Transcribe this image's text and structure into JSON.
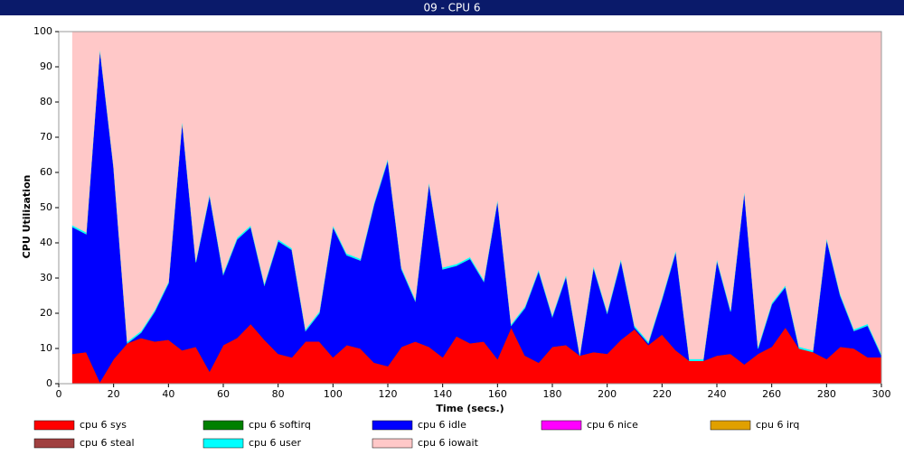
{
  "window_title": "09 - CPU 6",
  "chart_data": {
    "type": "stacked_area",
    "xlabel": "Time (secs.)",
    "ylabel": "CPU Utilization",
    "x": [
      5,
      10,
      15,
      20,
      25,
      30,
      35,
      40,
      45,
      50,
      55,
      60,
      65,
      70,
      75,
      80,
      85,
      90,
      95,
      100,
      105,
      110,
      115,
      120,
      125,
      130,
      135,
      140,
      145,
      150,
      155,
      160,
      165,
      170,
      175,
      180,
      185,
      190,
      195,
      200,
      205,
      210,
      215,
      220,
      225,
      230,
      235,
      240,
      245,
      250,
      255,
      260,
      265,
      270,
      275,
      280,
      285,
      290,
      295,
      300
    ],
    "xlim": [
      0,
      300
    ],
    "xticks": [
      0,
      20,
      40,
      60,
      80,
      100,
      120,
      140,
      160,
      180,
      200,
      220,
      240,
      260,
      280,
      300
    ],
    "ylim": [
      0,
      100
    ],
    "yticks": [
      0,
      10,
      20,
      30,
      40,
      50,
      60,
      70,
      80,
      90,
      100
    ],
    "series": [
      {
        "name": "cpu 6 sys",
        "color": "#ff0000",
        "values": [
          8.5,
          9,
          0.5,
          7,
          11.5,
          13,
          12,
          12.5,
          9.5,
          10.5,
          3.5,
          11,
          13,
          17,
          12.5,
          8.5,
          7.5,
          12,
          12,
          7.5,
          11,
          10,
          6,
          5,
          10.5,
          12,
          10.5,
          7.5,
          13.5,
          11.5,
          12,
          7,
          16,
          8,
          6,
          10.5,
          11,
          8,
          9,
          8.5,
          12.5,
          15.5,
          11,
          14,
          9.5,
          6.5,
          6.5,
          8,
          8.5,
          5.5,
          8.5,
          10.5,
          16,
          10,
          9,
          7,
          10.5,
          10,
          7.5,
          7.5
        ]
      },
      {
        "name": "cpu 6 softirq",
        "color": "#008000",
        "values": [
          0,
          0,
          0,
          0,
          0,
          0,
          0,
          0,
          0,
          0,
          0,
          0,
          0,
          0,
          0,
          0,
          0,
          0,
          0,
          0,
          0,
          0,
          0,
          0,
          0,
          0,
          0,
          0,
          0,
          0,
          0,
          0,
          0,
          0,
          0,
          0,
          0,
          0,
          0,
          0,
          0,
          0,
          0,
          0,
          0,
          0,
          0,
          0,
          0,
          0,
          0,
          0,
          0,
          0,
          0,
          0,
          0,
          0,
          0,
          0
        ]
      },
      {
        "name": "cpu 6 idle",
        "color": "#0000ff",
        "values": [
          36,
          33.5,
          94.5,
          54.5,
          0,
          1.5,
          8.5,
          16,
          65,
          24,
          50,
          20,
          28,
          27.5,
          15.5,
          32,
          30.5,
          3,
          8,
          37,
          25.5,
          25,
          45,
          58.5,
          22,
          11.5,
          46.5,
          25,
          20,
          24,
          17,
          45,
          0.5,
          13.5,
          26,
          8.5,
          19.5,
          0,
          24,
          11.5,
          22.5,
          0.5,
          0.5,
          10,
          28,
          0,
          0,
          27,
          12,
          49,
          1.5,
          12,
          11.5,
          0,
          0,
          34,
          14.5,
          5,
          9,
          0.5
        ]
      },
      {
        "name": "cpu 6 nice",
        "color": "#ff00ff",
        "values": [
          0,
          0,
          0,
          0,
          0,
          0,
          0,
          0,
          0,
          0,
          0,
          0,
          0,
          0,
          0,
          0,
          0,
          0,
          0,
          0,
          0,
          0,
          0,
          0,
          0,
          0,
          0,
          0,
          0,
          0,
          0,
          0,
          0,
          0,
          0,
          0,
          0,
          0,
          0,
          0,
          0,
          0,
          0,
          0,
          0,
          0,
          0,
          0,
          0,
          0,
          0,
          0,
          0,
          0,
          0,
          0,
          0,
          0,
          0,
          0
        ]
      },
      {
        "name": "cpu 6 irq",
        "color": "#e0a000",
        "values": [
          0,
          0,
          0,
          0,
          0,
          0,
          0,
          0,
          0,
          0,
          0,
          0,
          0,
          0,
          0,
          0,
          0,
          0,
          0,
          0,
          0,
          0,
          0,
          0,
          0,
          0,
          0,
          0,
          0,
          0,
          0,
          0,
          0,
          0,
          0,
          0,
          0,
          0,
          0,
          0,
          0,
          0,
          0,
          0,
          0,
          0,
          0,
          0,
          0,
          0,
          0,
          0,
          0,
          0,
          0,
          0,
          0,
          0,
          0,
          0
        ]
      },
      {
        "name": "cpu 6 steal",
        "color": "#a04040",
        "values": [
          0,
          0,
          0,
          0,
          0,
          0,
          0,
          0,
          0,
          0,
          0,
          0,
          0,
          0,
          0,
          0,
          0,
          0,
          0,
          0,
          0,
          0,
          0,
          0,
          0,
          0,
          0,
          0,
          0,
          0,
          0,
          0,
          0,
          0,
          0,
          0,
          0,
          0,
          0,
          0,
          0,
          0,
          0,
          0,
          0,
          0,
          0,
          0,
          0,
          0,
          0,
          0,
          0,
          0,
          0,
          0,
          0,
          0,
          0,
          0
        ]
      },
      {
        "name": "cpu 6 user",
        "color": "#00ffff",
        "values": [
          0.5,
          0.5,
          0.5,
          0.5,
          0.5,
          0.5,
          0.5,
          0.5,
          0.5,
          0.5,
          0.5,
          0.5,
          0.5,
          0.5,
          0.5,
          0.5,
          0.5,
          0.5,
          0.5,
          0.5,
          0.5,
          0.5,
          0.5,
          0.5,
          0.5,
          0.5,
          0.5,
          0.5,
          0.5,
          0.5,
          0.5,
          0.5,
          0.5,
          0.5,
          0.5,
          0.5,
          0.5,
          0.5,
          0.5,
          0.5,
          0.5,
          0.5,
          0.5,
          0.5,
          0.5,
          0.5,
          0.5,
          0.5,
          0.5,
          0.5,
          0.5,
          0.5,
          0.5,
          0.5,
          0.5,
          0.5,
          0.5,
          0.5,
          0.5,
          0.5
        ]
      },
      {
        "name": "cpu 6 iowait",
        "color": "#ffc8c8",
        "values": [
          55,
          57,
          4.5,
          38,
          88,
          85,
          79,
          71,
          25,
          65,
          46,
          68.5,
          58.5,
          55,
          71.5,
          59,
          61.5,
          84.5,
          79.5,
          55,
          63,
          64.5,
          48.5,
          36,
          67,
          76,
          42.5,
          67,
          66,
          64,
          70.5,
          47.5,
          83,
          78,
          67.5,
          80.5,
          69,
          91.5,
          66.5,
          79.5,
          64.5,
          83.5,
          88,
          75.5,
          62,
          93,
          93,
          64.5,
          79,
          45,
          89.5,
          77,
          72,
          89.5,
          90.5,
          58.5,
          74.5,
          84.5,
          83,
          91.5
        ]
      }
    ]
  }
}
